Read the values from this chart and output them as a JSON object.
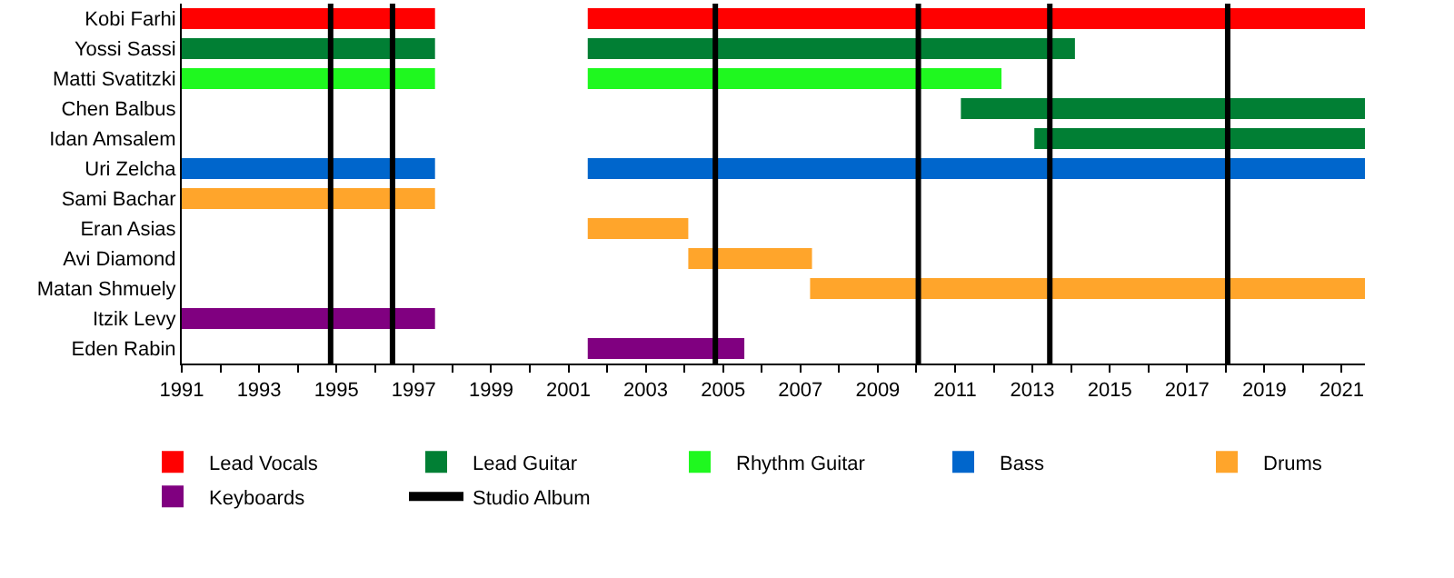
{
  "chart_data": {
    "type": "bar",
    "orientation": "horizontal",
    "categories": [
      "Kobi Farhi",
      "Yossi Sassi",
      "Matti Svatitzki",
      "Chen Balbus",
      "Idan Amsalem",
      "Uri Zelcha",
      "Sami Bachar",
      "Eran Asias",
      "Avi Diamond",
      "Matan Shmuely",
      "Itzik Levy",
      "Eden Rabin"
    ],
    "series": [
      {
        "name": "Lead Vocals",
        "color": "#ff0000",
        "base": [
          1991,
          null,
          null,
          null,
          null,
          null,
          null,
          null,
          null,
          null,
          null,
          null
        ],
        "values": [
          6.55,
          null,
          null,
          null,
          null,
          null,
          null,
          null,
          null,
          null,
          null,
          null
        ]
      },
      {
        "color": "#ff0000",
        "base": [
          2001.5,
          null,
          null,
          null,
          null,
          null,
          null,
          null,
          null,
          null,
          null,
          null
        ],
        "values": [
          20.1,
          null,
          null,
          null,
          null,
          null,
          null,
          null,
          null,
          null,
          null,
          null
        ]
      },
      {
        "name": "Lead Guitar",
        "color": "#017f34",
        "base": [
          null,
          1991,
          null,
          2011.15,
          2013.05,
          null,
          null,
          null,
          null,
          null,
          null,
          null
        ],
        "values": [
          null,
          6.55,
          null,
          10.45,
          8.55,
          null,
          null,
          null,
          null,
          null,
          null,
          null
        ]
      },
      {
        "color": "#017f34",
        "base": [
          null,
          2001.5,
          null,
          null,
          null,
          null,
          null,
          null,
          null,
          null,
          null,
          null
        ],
        "values": [
          null,
          12.6,
          null,
          null,
          null,
          null,
          null,
          null,
          null,
          null,
          null,
          null
        ]
      },
      {
        "name": "Rhythm Guitar",
        "color": "#1ff81f",
        "base": [
          null,
          null,
          1991,
          null,
          null,
          null,
          null,
          null,
          null,
          null,
          null,
          null
        ],
        "values": [
          null,
          null,
          6.55,
          null,
          null,
          null,
          null,
          null,
          null,
          null,
          null,
          null
        ]
      },
      {
        "color": "#1ff81f",
        "base": [
          null,
          null,
          2001.5,
          null,
          null,
          null,
          null,
          null,
          null,
          null,
          null,
          null
        ],
        "values": [
          null,
          null,
          10.7,
          null,
          null,
          null,
          null,
          null,
          null,
          null,
          null,
          null
        ]
      },
      {
        "name": "Bass",
        "color": "#0066cc",
        "base": [
          null,
          null,
          null,
          null,
          null,
          1991,
          null,
          null,
          null,
          null,
          null,
          null
        ],
        "values": [
          null,
          null,
          null,
          null,
          null,
          6.55,
          null,
          null,
          null,
          null,
          null,
          null
        ]
      },
      {
        "color": "#0066cc",
        "base": [
          null,
          null,
          null,
          null,
          null,
          2001.5,
          null,
          null,
          null,
          null,
          null,
          null
        ],
        "values": [
          null,
          null,
          null,
          null,
          null,
          20.1,
          null,
          null,
          null,
          null,
          null,
          null
        ]
      },
      {
        "name": "Drums",
        "color": "#ffa52b",
        "base": [
          null,
          null,
          null,
          null,
          null,
          null,
          1991,
          2001.5,
          2004.1,
          2007.25,
          null,
          null
        ],
        "values": [
          null,
          null,
          null,
          null,
          null,
          null,
          6.55,
          2.6,
          3.2,
          14.35,
          null,
          null
        ]
      },
      {
        "name": "Keyboards",
        "color": "#800080",
        "base": [
          null,
          null,
          null,
          null,
          null,
          null,
          null,
          null,
          null,
          null,
          1991,
          2001.5
        ],
        "values": [
          null,
          null,
          null,
          null,
          null,
          null,
          null,
          null,
          null,
          null,
          6.55,
          4.05
        ]
      }
    ],
    "ref_lines": [
      {
        "axis": "x",
        "value": 1994.85,
        "label": "Studio Album",
        "color": "#000000"
      },
      {
        "axis": "x",
        "value": 1996.45,
        "color": "#000000"
      },
      {
        "axis": "x",
        "value": 2004.8,
        "color": "#000000"
      },
      {
        "axis": "x",
        "value": 2010.05,
        "color": "#000000"
      },
      {
        "axis": "x",
        "value": 2013.45,
        "color": "#000000"
      },
      {
        "axis": "x",
        "value": 2018.05,
        "color": "#000000"
      }
    ],
    "xlim": [
      1991,
      2021.6
    ],
    "xticks": [
      1991,
      {
        "value": 1992,
        "label": null
      },
      1993,
      {
        "value": 1994,
        "label": null
      },
      1995,
      {
        "value": 1996,
        "label": null
      },
      1997,
      {
        "value": 1998,
        "label": null
      },
      1999,
      {
        "value": 2000,
        "label": null
      },
      2001,
      {
        "value": 2002,
        "label": null
      },
      2003,
      {
        "value": 2004,
        "label": null
      },
      2005,
      {
        "value": 2006,
        "label": null
      },
      2007,
      {
        "value": 2008,
        "label": null
      },
      2009,
      {
        "value": 2010,
        "label": null
      },
      2011,
      {
        "value": 2012,
        "label": null
      },
      2013,
      {
        "value": 2014,
        "label": null
      },
      2015,
      {
        "value": 2016,
        "label": null
      },
      2017,
      {
        "value": 2018,
        "label": null
      },
      2019,
      {
        "value": 2020,
        "label": null
      },
      2021
    ],
    "grid": false,
    "legend": "bottom"
  }
}
